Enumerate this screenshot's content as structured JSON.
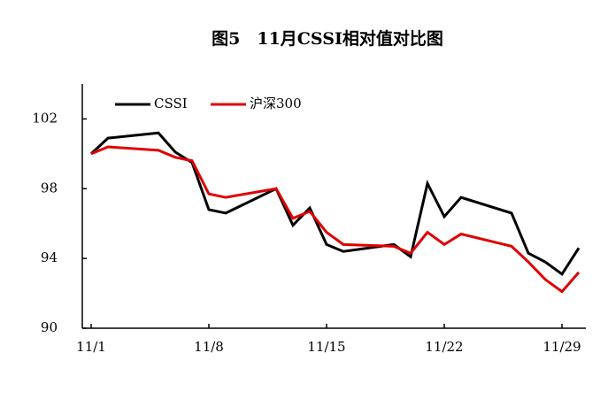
{
  "chart_data": {
    "type": "line",
    "title": "图5　11月CSSI相对值对比图",
    "x": [
      "11/1",
      "11/2",
      "11/5",
      "11/6",
      "11/7",
      "11/8",
      "11/9",
      "11/12",
      "11/13",
      "11/14",
      "11/15",
      "11/16",
      "11/19",
      "11/20",
      "11/21",
      "11/22",
      "11/23",
      "11/26",
      "11/27",
      "11/28",
      "11/29",
      "11/30"
    ],
    "xticks": [
      "11/1",
      "11/8",
      "11/15",
      "11/22",
      "11/29"
    ],
    "series": [
      {
        "name": "CSSI",
        "color": "#000000",
        "values": [
          100,
          100.9,
          101.2,
          100.1,
          99.5,
          96.8,
          96.6,
          98.0,
          95.9,
          96.9,
          94.8,
          94.4,
          94.8,
          94.1,
          98.3,
          96.4,
          97.5,
          96.6,
          94.3,
          93.8,
          93.1,
          94.6
        ]
      },
      {
        "name": "沪深300",
        "color": "#e00000",
        "values": [
          100,
          100.4,
          100.2,
          99.8,
          99.6,
          97.7,
          97.5,
          98.0,
          96.3,
          96.7,
          95.5,
          94.8,
          94.7,
          94.3,
          95.5,
          94.8,
          95.4,
          94.7,
          93.8,
          92.8,
          92.1,
          93.2
        ]
      }
    ],
    "ylim": [
      90,
      104
    ],
    "yticks": [
      90,
      94,
      98,
      102
    ],
    "grid": false,
    "legend": "top-left"
  }
}
